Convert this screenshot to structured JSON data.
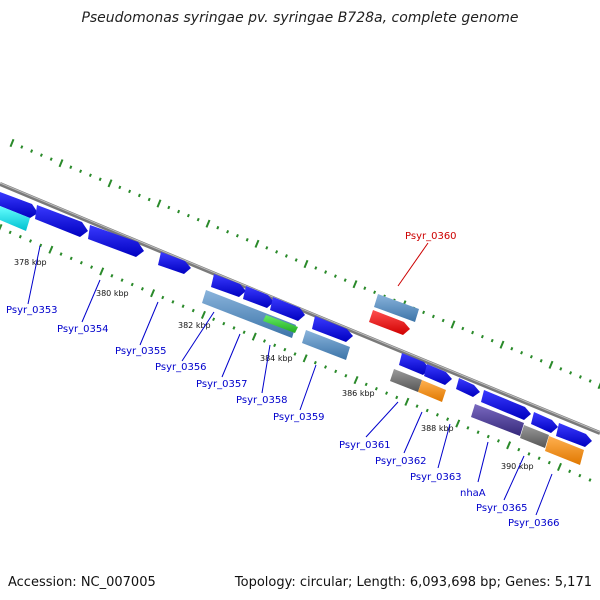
{
  "title": "Pseudomonas syringae pv. syringae B728a, complete genome",
  "accession": "Accession: NC_007005",
  "topology": "Topology: circular; Length: 6,093,698 bp; Genes: 5,171",
  "ticks": [
    "378 kbp",
    "380 kbp",
    "382 kbp",
    "384 kbp",
    "386 kbp",
    "388 kbp",
    "390 kbp"
  ],
  "genes": [
    {
      "name": "Psyr_0353",
      "color": "#0000cc"
    },
    {
      "name": "Psyr_0354",
      "color": "#0000cc"
    },
    {
      "name": "Psyr_0355",
      "color": "#0000cc"
    },
    {
      "name": "Psyr_0356",
      "color": "#0000cc"
    },
    {
      "name": "Psyr_0357",
      "color": "#0000cc"
    },
    {
      "name": "Psyr_0358",
      "color": "#0000cc"
    },
    {
      "name": "Psyr_0359",
      "color": "#0000cc"
    },
    {
      "name": "Psyr_0360",
      "color": "#cc0000"
    },
    {
      "name": "Psyr_0361",
      "color": "#0000cc"
    },
    {
      "name": "Psyr_0362",
      "color": "#0000cc"
    },
    {
      "name": "Psyr_0363",
      "color": "#0000cc"
    },
    {
      "name": "nhaA",
      "color": "#0000cc"
    },
    {
      "name": "Psyr_0365",
      "color": "#0000cc"
    },
    {
      "name": "Psyr_0366",
      "color": "#0000cc"
    }
  ],
  "colors": {
    "backbone": "#7a7a7a",
    "dots": "#2a8a2a",
    "forward_gene": "#1010e8",
    "cds_blue": "#4a86c0",
    "cds_gray": "#707070",
    "cds_orange": "#f08a10",
    "cds_purple": "#4a3a90",
    "cds_green": "#33cc33",
    "cds_cyan": "#00e0e8",
    "highlight_red": "#ff0000"
  }
}
